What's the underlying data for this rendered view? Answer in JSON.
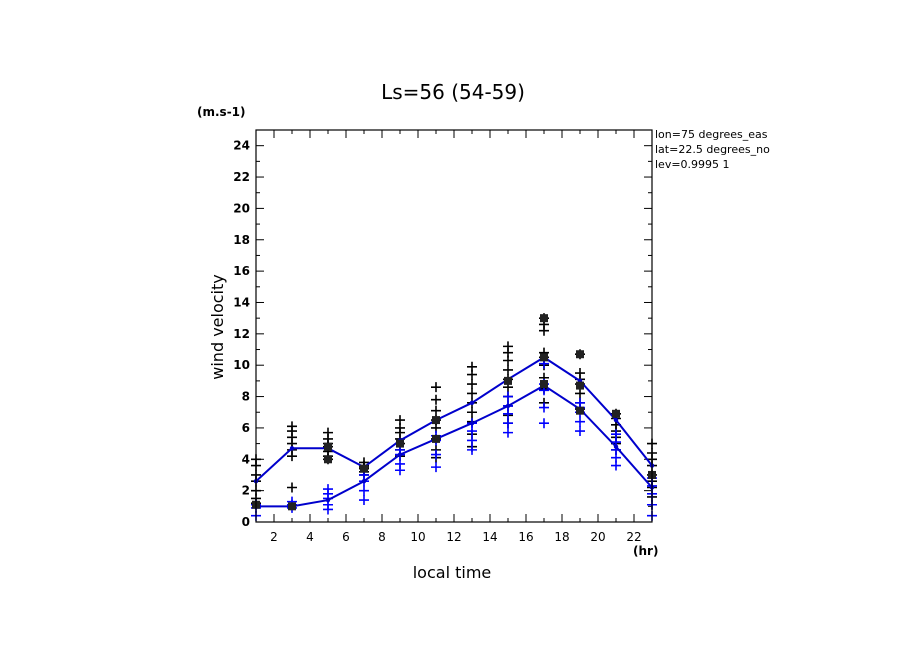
{
  "chart_data": {
    "type": "line",
    "title": "Ls=56 (54-59)",
    "xlabel": "local time",
    "ylabel": "wind velocity",
    "yunit": "(m.s-1)",
    "xunit": "(hr)",
    "info_lines": [
      "lon=75 degrees_eas",
      "lat=22.5 degrees_no",
      "lev=0.9995 1"
    ],
    "xlim": [
      1,
      23
    ],
    "ylim": [
      0,
      25
    ],
    "x_ticks": [
      2,
      4,
      6,
      8,
      10,
      12,
      14,
      16,
      18,
      20,
      22
    ],
    "y_ticks": [
      0,
      2,
      4,
      6,
      8,
      10,
      12,
      14,
      16,
      18,
      20,
      22,
      24
    ],
    "grid": false,
    "x": [
      1,
      3,
      5,
      7,
      9,
      11,
      13,
      15,
      17,
      19,
      21,
      23
    ],
    "series": [
      {
        "color": "#0000cc",
        "values": [
          2.6,
          4.7,
          4.7,
          3.5,
          5.2,
          6.5,
          7.6,
          9.1,
          10.5,
          9.0,
          6.5,
          3.6
        ]
      },
      {
        "color": "#0000cc",
        "values": [
          1.0,
          1.0,
          1.4,
          2.6,
          4.3,
          5.3,
          6.3,
          7.4,
          8.7,
          7.2,
          4.8,
          2.2
        ]
      }
    ],
    "scatter": [
      {
        "color": "#000000",
        "points": [
          [
            1,
            1.2
          ],
          [
            1,
            1.5
          ],
          [
            1,
            2.0
          ],
          [
            1,
            2.6
          ],
          [
            1,
            3.0
          ],
          [
            1,
            3.6
          ],
          [
            1,
            4.0
          ],
          [
            3,
            2.2
          ],
          [
            3,
            4.2
          ],
          [
            3,
            4.6
          ],
          [
            3,
            5.0
          ],
          [
            3,
            5.4
          ],
          [
            3,
            5.8
          ],
          [
            3,
            6.1
          ],
          [
            5,
            4.0
          ],
          [
            5,
            4.2
          ],
          [
            5,
            4.5
          ],
          [
            5,
            4.8
          ],
          [
            5,
            5.0
          ],
          [
            5,
            5.3
          ],
          [
            5,
            5.7
          ],
          [
            7,
            3.0
          ],
          [
            7,
            3.2
          ],
          [
            7,
            3.4
          ],
          [
            7,
            3.5
          ],
          [
            7,
            3.6
          ],
          [
            7,
            3.8
          ],
          [
            9,
            4.2
          ],
          [
            9,
            4.6
          ],
          [
            9,
            5.0
          ],
          [
            9,
            5.3
          ],
          [
            9,
            5.7
          ],
          [
            9,
            6.0
          ],
          [
            9,
            6.5
          ],
          [
            11,
            4.1
          ],
          [
            11,
            4.6
          ],
          [
            11,
            5.3
          ],
          [
            11,
            6.0
          ],
          [
            11,
            6.5
          ],
          [
            11,
            7.1
          ],
          [
            11,
            7.8
          ],
          [
            11,
            8.6
          ],
          [
            13,
            4.8
          ],
          [
            13,
            5.6
          ],
          [
            13,
            6.4
          ],
          [
            13,
            7.0
          ],
          [
            13,
            7.6
          ],
          [
            13,
            8.2
          ],
          [
            13,
            8.8
          ],
          [
            13,
            9.4
          ],
          [
            13,
            9.9
          ],
          [
            15,
            6.3
          ],
          [
            15,
            6.8
          ],
          [
            15,
            7.4
          ],
          [
            15,
            8.0
          ],
          [
            15,
            8.6
          ],
          [
            15,
            9.1
          ],
          [
            15,
            9.7
          ],
          [
            15,
            10.3
          ],
          [
            15,
            10.8
          ],
          [
            15,
            11.2
          ],
          [
            17,
            7.6
          ],
          [
            17,
            8.5
          ],
          [
            17,
            9.2
          ],
          [
            17,
            10.0
          ],
          [
            17,
            10.5
          ],
          [
            17,
            10.8
          ],
          [
            17,
            12.2
          ],
          [
            17,
            12.6
          ],
          [
            17,
            13.0
          ],
          [
            19,
            7.2
          ],
          [
            19,
            7.6
          ],
          [
            19,
            8.2
          ],
          [
            19,
            8.8
          ],
          [
            19,
            9.1
          ],
          [
            19,
            9.5
          ],
          [
            19,
            10.7
          ],
          [
            21,
            4.6
          ],
          [
            21,
            5.0
          ],
          [
            21,
            5.4
          ],
          [
            21,
            5.8
          ],
          [
            21,
            6.2
          ],
          [
            21,
            6.6
          ],
          [
            21,
            6.9
          ],
          [
            23,
            1.1
          ],
          [
            23,
            1.6
          ],
          [
            23,
            2.2
          ],
          [
            23,
            2.6
          ],
          [
            23,
            3.0
          ],
          [
            23,
            3.6
          ],
          [
            23,
            4.0
          ],
          [
            23,
            4.4
          ],
          [
            23,
            5.0
          ]
        ]
      },
      {
        "color": "#0000ff",
        "points": [
          [
            1,
            0.4
          ],
          [
            1,
            0.9
          ],
          [
            1,
            1.1
          ],
          [
            3,
            0.9
          ],
          [
            3,
            1.1
          ],
          [
            3,
            1.3
          ],
          [
            5,
            0.8
          ],
          [
            5,
            1.1
          ],
          [
            5,
            1.5
          ],
          [
            5,
            1.8
          ],
          [
            5,
            2.1
          ],
          [
            7,
            1.4
          ],
          [
            7,
            2.0
          ],
          [
            7,
            2.6
          ],
          [
            7,
            3.0
          ],
          [
            9,
            3.3
          ],
          [
            9,
            3.7
          ],
          [
            9,
            4.3
          ],
          [
            9,
            4.6
          ],
          [
            11,
            3.5
          ],
          [
            11,
            4.3
          ],
          [
            11,
            5.2
          ],
          [
            11,
            5.5
          ],
          [
            13,
            4.6
          ],
          [
            13,
            5.2
          ],
          [
            13,
            5.8
          ],
          [
            13,
            6.3
          ],
          [
            15,
            5.7
          ],
          [
            15,
            6.3
          ],
          [
            15,
            6.9
          ],
          [
            15,
            7.4
          ],
          [
            15,
            8.0
          ],
          [
            17,
            6.3
          ],
          [
            17,
            7.3
          ],
          [
            17,
            8.4
          ],
          [
            17,
            8.8
          ],
          [
            17,
            10.1
          ],
          [
            19,
            5.8
          ],
          [
            19,
            6.4
          ],
          [
            19,
            7.0
          ],
          [
            19,
            7.3
          ],
          [
            19,
            7.6
          ],
          [
            21,
            3.6
          ],
          [
            21,
            4.1
          ],
          [
            21,
            4.6
          ],
          [
            21,
            5.1
          ],
          [
            21,
            5.6
          ],
          [
            23,
            0.4
          ],
          [
            23,
            1.1
          ],
          [
            23,
            1.8
          ],
          [
            23,
            2.3
          ],
          [
            23,
            2.8
          ]
        ]
      }
    ],
    "squares": {
      "color": "#222222",
      "points": [
        [
          1,
          1.1
        ],
        [
          3,
          1.0
        ],
        [
          5,
          4.0
        ],
        [
          5,
          4.8
        ],
        [
          7,
          3.4
        ],
        [
          9,
          5.0
        ],
        [
          11,
          5.3
        ],
        [
          11,
          6.5
        ],
        [
          15,
          9.0
        ],
        [
          17,
          10.5
        ],
        [
          17,
          8.8
        ],
        [
          17,
          13.0
        ],
        [
          19,
          7.1
        ],
        [
          19,
          8.7
        ],
        [
          19,
          10.7
        ],
        [
          21,
          6.9
        ],
        [
          23,
          3.0
        ]
      ]
    }
  }
}
